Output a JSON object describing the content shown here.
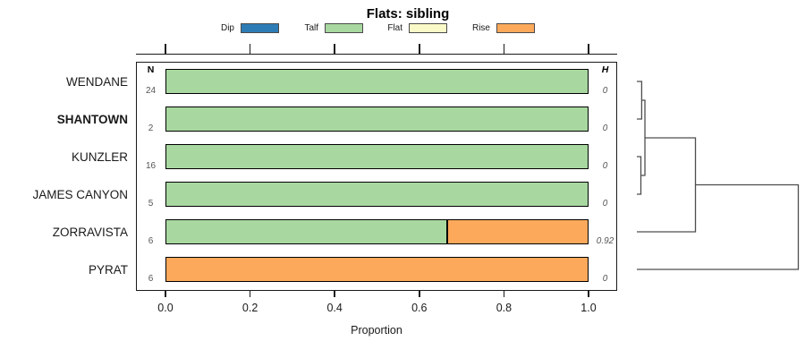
{
  "title": "Flats: sibling",
  "legend": [
    {
      "label": "Dip",
      "color": "#2E7CB5"
    },
    {
      "label": "Talf",
      "color": "#A8D8A0"
    },
    {
      "label": "Flat",
      "color": "#FAFAC8"
    },
    {
      "label": "Rise",
      "color": "#FCA95C"
    }
  ],
  "columns": {
    "n_header": "N",
    "h_header": "H"
  },
  "xaxis": {
    "label": "Proportion",
    "tick_labels": [
      "0.0",
      "0.2",
      "0.4",
      "0.6",
      "0.8",
      "1.0"
    ],
    "tick_values": [
      0,
      0.2,
      0.4,
      0.6,
      0.8,
      1.0
    ]
  },
  "rows": [
    {
      "label": "WENDANE",
      "bold": false,
      "n": "24",
      "h": "0",
      "segments": [
        {
          "category": "Talf",
          "value": 1.0
        }
      ]
    },
    {
      "label": "SHANTOWN",
      "bold": true,
      "n": "2",
      "h": "0",
      "segments": [
        {
          "category": "Talf",
          "value": 1.0
        }
      ]
    },
    {
      "label": "KUNZLER",
      "bold": false,
      "n": "16",
      "h": "0",
      "segments": [
        {
          "category": "Talf",
          "value": 1.0
        }
      ]
    },
    {
      "label": "JAMES CANYON",
      "bold": false,
      "n": "5",
      "h": "0",
      "segments": [
        {
          "category": "Talf",
          "value": 1.0
        }
      ]
    },
    {
      "label": "ZORRAVISTA",
      "bold": false,
      "n": "6",
      "h": "0.92",
      "segments": [
        {
          "category": "Talf",
          "value": 0.667
        },
        {
          "category": "Rise",
          "value": 0.333
        }
      ]
    },
    {
      "label": "PYRAT",
      "bold": false,
      "n": "6",
      "h": "0",
      "segments": [
        {
          "category": "Rise",
          "value": 1.0
        }
      ]
    }
  ],
  "chart_data": {
    "type": "bar",
    "orientation": "horizontal",
    "stacked": true,
    "title": "Flats: sibling",
    "xlabel": "Proportion",
    "xlim": [
      0,
      1
    ],
    "legend_position": "top",
    "categories": [
      "WENDANE",
      "SHANTOWN",
      "KUNZLER",
      "JAMES CANYON",
      "ZORRAVISTA",
      "PYRAT"
    ],
    "n_counts": [
      24,
      2,
      16,
      5,
      6,
      6
    ],
    "entropy_h": [
      0,
      0,
      0,
      0,
      0.92,
      0
    ],
    "series": [
      {
        "name": "Dip",
        "color": "#2E7CB5",
        "values": [
          0,
          0,
          0,
          0,
          0,
          0
        ]
      },
      {
        "name": "Talf",
        "color": "#A8D8A0",
        "values": [
          1,
          1,
          1,
          1,
          0.667,
          0
        ]
      },
      {
        "name": "Flat",
        "color": "#FAFAC8",
        "values": [
          0,
          0,
          0,
          0,
          0,
          0
        ]
      },
      {
        "name": "Rise",
        "color": "#FCA95C",
        "values": [
          0,
          0,
          0,
          0,
          0.333,
          1
        ]
      }
    ],
    "dendrogram": {
      "side": "right",
      "leaves": [
        "WENDANE",
        "SHANTOWN",
        "KUNZLER",
        "JAMES CANYON",
        "ZORRAVISTA",
        "PYRAT"
      ],
      "merges": [
        {
          "id": "M1",
          "children": [
            "L0",
            "L1"
          ],
          "height": 0.03
        },
        {
          "id": "M2",
          "children": [
            "L2",
            "L3"
          ],
          "height": 0.025
        },
        {
          "id": "M3",
          "children": [
            "M1",
            "M2"
          ],
          "height": 0.05
        },
        {
          "id": "M4",
          "children": [
            "M3",
            "L4"
          ],
          "height": 0.363
        },
        {
          "id": "M5",
          "children": [
            "M4",
            "L5"
          ],
          "height": 1.0
        }
      ]
    }
  }
}
